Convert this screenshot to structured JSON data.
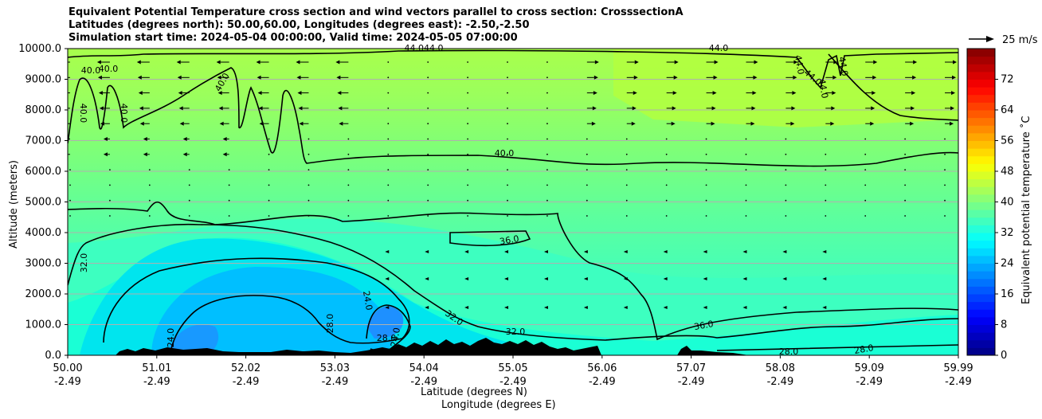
{
  "title_lines": [
    "Equivalent Potential Temperature cross section and wind vectors parallel to cross section: CrosssectionA",
    "Latitudes (degrees north): 50.00,60.00, Longitudes (degrees east): -2.50,-2.50",
    "Simulation start time: 2024-05-04 00:00:00, Valid time: 2024-05-05 07:00:00"
  ],
  "quiver_key": {
    "label": "25 m/s",
    "value": 25
  },
  "chart_data": {
    "type": "heatmap",
    "title": "Equivalent Potential Temperature cross section and wind vectors parallel to cross section: CrosssectionA",
    "xlabel": "Latitude (degrees N)",
    "xlabel2": "Longitude (degrees E)",
    "ylabel": "Altitude (meters)",
    "colorbar_label": "Equivalent potential temperature ˚C",
    "x_ticks": [
      {
        "lat": "50.00",
        "lon": "-2.49"
      },
      {
        "lat": "51.01",
        "lon": "-2.49"
      },
      {
        "lat": "52.02",
        "lon": "-2.49"
      },
      {
        "lat": "53.03",
        "lon": "-2.49"
      },
      {
        "lat": "54.04",
        "lon": "-2.49"
      },
      {
        "lat": "55.05",
        "lon": "-2.49"
      },
      {
        "lat": "56.06",
        "lon": "-2.49"
      },
      {
        "lat": "57.07",
        "lon": "-2.49"
      },
      {
        "lat": "58.08",
        "lon": "-2.49"
      },
      {
        "lat": "59.09",
        "lon": "-2.49"
      },
      {
        "lat": "59.99",
        "lon": "-2.49"
      }
    ],
    "y_ticks": [
      "0.0",
      "1000.0",
      "2000.0",
      "3000.0",
      "4000.0",
      "5000.0",
      "6000.0",
      "7000.0",
      "8000.0",
      "9000.0",
      "10000.0"
    ],
    "ylim": [
      0,
      10000
    ],
    "xlim": [
      50.0,
      59.99
    ],
    "colorbar_ticks": [
      0,
      8,
      16,
      24,
      32,
      40,
      48,
      56,
      64,
      72
    ],
    "colorbar_range": [
      0,
      80
    ],
    "contour_levels": [
      24,
      28,
      32,
      36,
      40,
      44
    ],
    "contour_labels": [
      {
        "text": "44.044.0"
      },
      {
        "text": "44.0"
      },
      {
        "text": "44.0"
      },
      {
        "text": "44.0"
      },
      {
        "text": "44.0"
      },
      {
        "text": "44.0"
      },
      {
        "text": "40.0"
      },
      {
        "text": "40.0"
      },
      {
        "text": "40.0"
      },
      {
        "text": "40.0"
      },
      {
        "text": "40.0"
      },
      {
        "text": "40.0"
      },
      {
        "text": "36.0"
      },
      {
        "text": "36.0"
      },
      {
        "text": "32.0"
      },
      {
        "text": "32.0"
      },
      {
        "text": "32.0"
      },
      {
        "text": "28.0"
      },
      {
        "text": "28.0"
      },
      {
        "text": "28.0"
      },
      {
        "text": "28.0"
      },
      {
        "text": "24.0"
      },
      {
        "text": "24.0"
      },
      {
        "text": "24.0"
      }
    ],
    "grid": "horizontal",
    "temperature_bands": [
      {
        "level": 24,
        "color": "#1e90ff"
      },
      {
        "level": 28,
        "color": "#00bfff"
      },
      {
        "level": 32,
        "color": "#00e5ee"
      },
      {
        "level": 34,
        "color": "#1affd5"
      },
      {
        "level": 36,
        "color": "#3dffc0"
      },
      {
        "level": 38,
        "color": "#5cff9e"
      },
      {
        "level": 40,
        "color": "#7bff7b"
      },
      {
        "level": 42,
        "color": "#9bff5c"
      },
      {
        "level": 44,
        "color": "#b4ff3d"
      }
    ]
  }
}
